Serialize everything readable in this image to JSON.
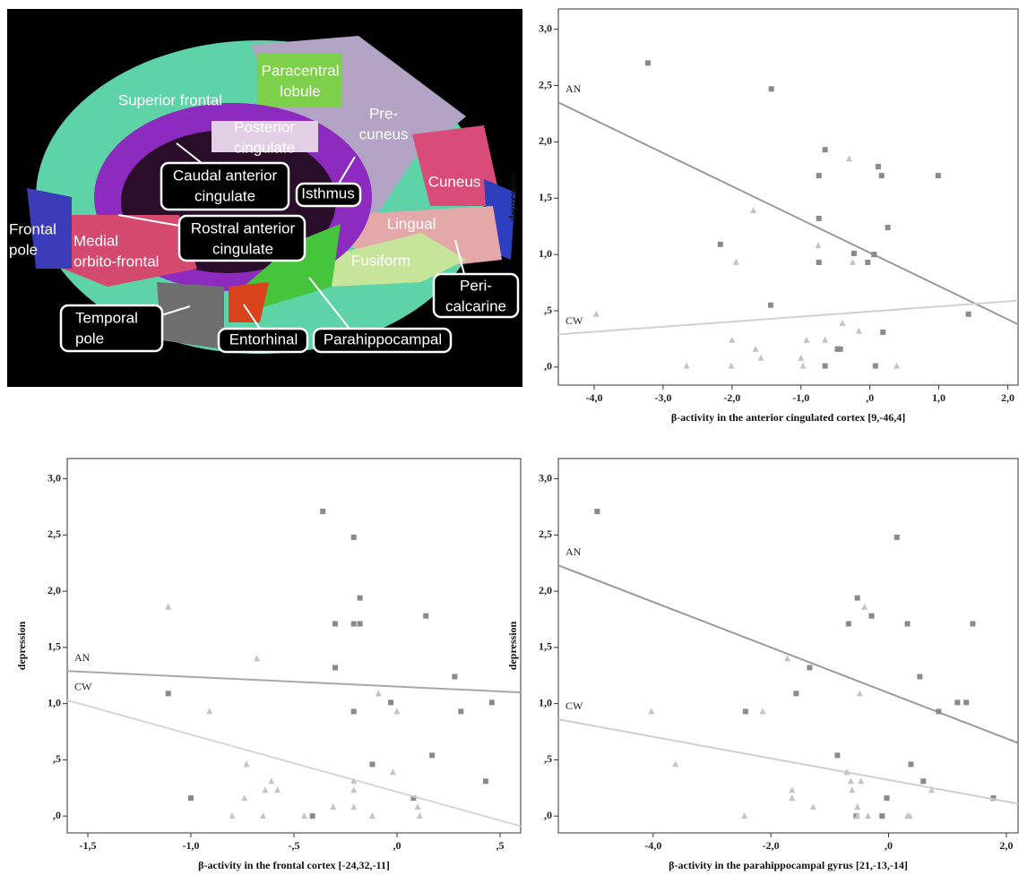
{
  "brain_image": {
    "labels": [
      {
        "lines": [
          "Paracentral",
          "lobule"
        ],
        "boxed": false
      },
      {
        "lines": [
          "Superior frontal"
        ],
        "boxed": false
      },
      {
        "lines": [
          "Posterior",
          "cingulate"
        ],
        "boxed": false
      },
      {
        "lines": [
          "Pre-",
          "cuneus"
        ],
        "boxed": false
      },
      {
        "lines": [
          "Caudal anterior",
          "cingulate"
        ],
        "boxed": true
      },
      {
        "lines": [
          "Isthmus"
        ],
        "boxed": true
      },
      {
        "lines": [
          "Cuneus"
        ],
        "boxed": false
      },
      {
        "lines": [
          "Lingual"
        ],
        "boxed": false
      },
      {
        "lines": [
          "Frontal",
          "pole"
        ],
        "boxed": false
      },
      {
        "lines": [
          "Rostral anterior",
          "cingulate"
        ],
        "boxed": true
      },
      {
        "lines": [
          "Medial",
          "orbito-frontal"
        ],
        "boxed": false
      },
      {
        "lines": [
          "Fusiform"
        ],
        "boxed": false
      },
      {
        "lines": [
          "Peri-",
          "calcarine"
        ],
        "boxed": true
      },
      {
        "lines": [
          "Temporal",
          "pole"
        ],
        "boxed": true
      },
      {
        "lines": [
          "Entorhinal"
        ],
        "boxed": true
      },
      {
        "lines": [
          "Parahippocampal"
        ],
        "boxed": true
      }
    ]
  },
  "chart_data": [
    {
      "type": "scatter",
      "x_label": "β-activity in the anterior cingulated cortex [9,-46,4]",
      "y_label": "depression",
      "xlim": [
        -4.52,
        2.15
      ],
      "ylim": [
        -0.16,
        3.18
      ],
      "xticks": [
        {
          "value": -4,
          "label": "-4,0"
        },
        {
          "value": -3,
          "label": "-3,0"
        },
        {
          "value": -2,
          "label": "-2,0"
        },
        {
          "value": -1,
          "label": "-1,0"
        },
        {
          "value": 0,
          "label": ",0"
        },
        {
          "value": 1,
          "label": "1,0"
        },
        {
          "value": 2,
          "label": "2,0"
        }
      ],
      "yticks": [
        {
          "value": 0,
          "label": ",0"
        },
        {
          "value": 0.5,
          "label": ",5"
        },
        {
          "value": 1,
          "label": "1,0"
        },
        {
          "value": 1.5,
          "label": "1,5"
        },
        {
          "value": 2,
          "label": "2,0"
        },
        {
          "value": 2.5,
          "label": "2,5"
        },
        {
          "value": 3,
          "label": "3,0"
        }
      ],
      "series": [
        {
          "name": "AN",
          "marker": "square",
          "color": "#8a8a8a",
          "line_color": "#9a9a9a",
          "x": [
            -3.22,
            -1.43,
            -0.65,
            -0.74,
            0.12,
            0.17,
            0.99,
            -0.74,
            0.26,
            -2.17,
            -0.23,
            0.06,
            -0.74,
            -0.03,
            -1.44,
            1.43,
            0.19,
            -0.47,
            -0.43,
            -0.65,
            0.08
          ],
          "y": [
            2.7,
            2.47,
            1.93,
            1.7,
            1.78,
            1.7,
            1.7,
            1.32,
            1.24,
            1.09,
            1.01,
            1.0,
            0.93,
            0.93,
            0.55,
            0.47,
            0.31,
            0.16,
            0.16,
            0.01,
            0.01
          ],
          "fit": {
            "x": [
              -4.52,
              2.15
            ],
            "y": [
              2.35,
              0.38
            ]
          }
        },
        {
          "name": "CW",
          "marker": "triangle",
          "color": "#c4c4c4",
          "line_color": "#d0d0d0",
          "x": [
            -0.3,
            -1.69,
            -0.75,
            -1.94,
            -0.25,
            -3.97,
            -0.4,
            -0.16,
            -2.0,
            -1.66,
            -1.58,
            -0.92,
            -0.65,
            -1.0,
            -2.66,
            -2.01,
            -0.97,
            0.39
          ],
          "y": [
            1.85,
            1.39,
            1.08,
            0.93,
            0.93,
            0.47,
            0.39,
            0.32,
            0.24,
            0.16,
            0.08,
            0.24,
            0.24,
            0.08,
            0.01,
            0.01,
            0.01,
            0.01
          ],
          "fit": {
            "x": [
              -4.52,
              2.15
            ],
            "y": [
              0.29,
              0.59
            ]
          }
        }
      ]
    },
    {
      "type": "scatter",
      "x_label": "β-activity in the frontal cortex [-24,32,-11]",
      "y_label": "depression",
      "xlim": [
        -1.6,
        0.6
      ],
      "ylim": [
        -0.15,
        3.18
      ],
      "xticks": [
        {
          "value": -1.5,
          "label": "-1,5"
        },
        {
          "value": -1,
          "label": "-1,0"
        },
        {
          "value": -0.5,
          "label": "-,5"
        },
        {
          "value": 0,
          "label": ",0"
        },
        {
          "value": 0.5,
          "label": ",5"
        }
      ],
      "yticks": [
        {
          "value": 0,
          "label": ",0"
        },
        {
          "value": 0.5,
          "label": ",5"
        },
        {
          "value": 1,
          "label": "1,0"
        },
        {
          "value": 1.5,
          "label": "1,5"
        },
        {
          "value": 2,
          "label": "2,0"
        },
        {
          "value": 2.5,
          "label": "2,5"
        },
        {
          "value": 3,
          "label": "3,0"
        }
      ],
      "series": [
        {
          "name": "AN",
          "marker": "square",
          "color": "#8a8a8a",
          "line_color": "#a8a8a8",
          "x": [
            -0.36,
            -0.21,
            -0.18,
            -0.3,
            -0.21,
            -0.18,
            0.14,
            -0.3,
            0.28,
            -1.11,
            -0.03,
            -0.21,
            0.31,
            0.46,
            0.17,
            -0.12,
            0.43,
            -1.0,
            0.08,
            -0.41
          ],
          "y": [
            2.71,
            2.48,
            1.94,
            1.71,
            1.71,
            1.71,
            1.78,
            1.32,
            1.24,
            1.09,
            1.01,
            0.93,
            0.93,
            1.01,
            0.54,
            0.46,
            0.31,
            0.16,
            0.16,
            0.0
          ],
          "fit": {
            "x": [
              -1.6,
              0.6
            ],
            "y": [
              1.29,
              1.1
            ]
          }
        },
        {
          "name": "CW",
          "marker": "triangle",
          "color": "#c4c4c4",
          "line_color": "#d6d6d6",
          "x": [
            -1.11,
            -0.68,
            -0.09,
            -0.91,
            0.0,
            -0.73,
            -0.02,
            -0.61,
            -0.21,
            -0.64,
            -0.58,
            -0.21,
            -0.74,
            -0.31,
            -0.21,
            0.1,
            -0.8,
            -0.65,
            -0.45,
            -0.12,
            0.11
          ],
          "y": [
            1.86,
            1.4,
            1.09,
            0.93,
            0.93,
            0.46,
            0.39,
            0.31,
            0.31,
            0.23,
            0.23,
            0.23,
            0.16,
            0.08,
            0.08,
            0.08,
            0.0,
            0.0,
            0.0,
            0.0,
            0.0
          ],
          "fit": {
            "x": [
              -1.6,
              0.6
            ],
            "y": [
              1.03,
              -0.09
            ]
          }
        }
      ]
    },
    {
      "type": "scatter",
      "x_label": "β-activity in the parahippocampal gyrus [21,-13,-14]",
      "y_label": "depression",
      "xlim": [
        -5.61,
        2.2
      ],
      "ylim": [
        -0.15,
        3.18
      ],
      "xticks": [
        {
          "value": -4,
          "label": "-4,0"
        },
        {
          "value": -2,
          "label": "-2,0"
        },
        {
          "value": 0,
          "label": ",0"
        },
        {
          "value": 2,
          "label": "2,0"
        }
      ],
      "yticks": [
        {
          "value": 0,
          "label": ",0"
        },
        {
          "value": 0.5,
          "label": ",5"
        },
        {
          "value": 1,
          "label": "1,0"
        },
        {
          "value": 1.5,
          "label": "1,5"
        },
        {
          "value": 2,
          "label": "2,0"
        },
        {
          "value": 2.5,
          "label": "2,5"
        },
        {
          "value": 3,
          "label": "3,0"
        }
      ],
      "series": [
        {
          "name": "AN",
          "marker": "square",
          "color": "#8a8a8a",
          "line_color": "#9a9a9a",
          "x": [
            -4.95,
            0.14,
            -0.53,
            -0.68,
            -0.29,
            0.32,
            1.43,
            -1.34,
            0.53,
            -1.57,
            1.17,
            1.32,
            -2.43,
            0.85,
            -0.87,
            0.38,
            0.59,
            1.78,
            -0.03,
            -0.11,
            -0.55
          ],
          "y": [
            2.71,
            2.48,
            1.94,
            1.71,
            1.78,
            1.71,
            1.71,
            1.32,
            1.24,
            1.09,
            1.01,
            1.01,
            0.93,
            0.93,
            0.54,
            0.46,
            0.31,
            0.16,
            0.16,
            0.0,
            0.0
          ],
          "fit": {
            "x": [
              -5.61,
              2.2
            ],
            "y": [
              2.23,
              0.65
            ]
          }
        },
        {
          "name": "CW",
          "marker": "triangle",
          "color": "#c4c4c4",
          "line_color": "#cfcfcf",
          "x": [
            -0.41,
            -1.72,
            -0.49,
            -4.03,
            -2.14,
            -3.62,
            -0.71,
            -0.64,
            -0.47,
            -1.64,
            -0.62,
            -1.64,
            0.73,
            -1.28,
            -0.53,
            -2.45,
            -0.53,
            -0.35,
            0.32,
            0.36
          ],
          "y": [
            1.86,
            1.4,
            1.09,
            0.93,
            0.93,
            0.46,
            0.39,
            0.31,
            0.31,
            0.23,
            0.23,
            0.16,
            0.23,
            0.08,
            0.08,
            0.0,
            0.0,
            0.0,
            0.0,
            0.0
          ],
          "fit": {
            "x": [
              -5.61,
              2.2
            ],
            "y": [
              0.86,
              0.11
            ]
          }
        }
      ]
    }
  ]
}
